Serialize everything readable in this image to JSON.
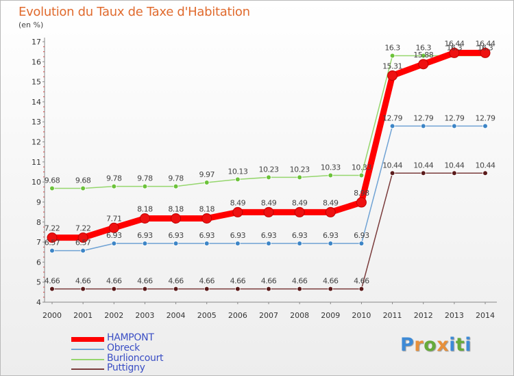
{
  "title": "Evolution du Taux de Taxe d'Habitation",
  "unit_label": "(en %)",
  "logo": {
    "text": "Proxiti",
    "letters": [
      "P",
      "r",
      "o",
      "x",
      "i",
      "t",
      "i"
    ],
    "colors": [
      "#3d8ad6",
      "#e8903a",
      "#66ab3a",
      "#e8903a",
      "#3d8ad6",
      "#66ab3a",
      "#3d8ad6"
    ]
  },
  "chart_data": {
    "type": "line",
    "title": "Evolution du Taux de Taxe d'Habitation",
    "ylabel": "(en %)",
    "xlabel": "",
    "x": [
      "2000",
      "2001",
      "2002",
      "2003",
      "2004",
      "2005",
      "2006",
      "2007",
      "2008",
      "2009",
      "2010",
      "2011",
      "2012",
      "2013",
      "2014"
    ],
    "ylim": [
      4,
      17
    ],
    "yticks": [
      "4",
      "5",
      "6",
      "7",
      "8",
      "9",
      "10",
      "11",
      "12",
      "13",
      "14",
      "15",
      "16",
      "17"
    ],
    "grid": false,
    "legend_placement": "bottom-left",
    "series": [
      {
        "name": "HAMPONT",
        "color": "#ff0000",
        "marker_color": "#ee1111",
        "values": [
          7.22,
          7.22,
          7.71,
          8.18,
          8.18,
          8.18,
          8.49,
          8.49,
          8.49,
          8.49,
          8.98,
          15.31,
          15.88,
          16.44,
          16.44
        ],
        "labels": [
          "7.22",
          "7.22",
          "7.71",
          "8.18",
          "8.18",
          "8.18",
          "8.49",
          "8.49",
          "8.49",
          "8.49",
          "8.98",
          "15.31",
          "15.88",
          "16.44",
          "16.44"
        ],
        "emphasis": true
      },
      {
        "name": "Obreck",
        "color": "#6fa2d4",
        "marker_color": "#3d85c6",
        "values": [
          6.57,
          6.57,
          6.93,
          6.93,
          6.93,
          6.93,
          6.93,
          6.93,
          6.93,
          6.93,
          6.93,
          12.79,
          12.79,
          12.79,
          12.79
        ],
        "labels": [
          "6.57",
          "6.57",
          "6.93",
          "6.93",
          "6.93",
          "6.93",
          "6.93",
          "6.93",
          "6.93",
          "6.93",
          "6.93",
          "12.79",
          "12.79",
          "12.79",
          "12.79"
        ],
        "emphasis": false
      },
      {
        "name": "Burlioncourt",
        "color": "#95d66d",
        "marker_color": "#6cc23a",
        "values": [
          9.68,
          9.68,
          9.78,
          9.78,
          9.78,
          9.97,
          10.13,
          10.23,
          10.23,
          10.33,
          10.33,
          16.3,
          16.3,
          16.3,
          16.3
        ],
        "labels": [
          "9.68",
          "9.68",
          "9.78",
          "9.78",
          "9.78",
          "9.97",
          "10.13",
          "10.23",
          "10.23",
          "10.33",
          "10.33",
          "16.3",
          "16.3",
          "16.3",
          "16.3"
        ],
        "emphasis": false
      },
      {
        "name": "Puttigny",
        "color": "#7a3b3b",
        "marker_color": "#5a1a1a",
        "values": [
          4.66,
          4.66,
          4.66,
          4.66,
          4.66,
          4.66,
          4.66,
          4.66,
          4.66,
          4.66,
          4.66,
          10.44,
          10.44,
          10.44,
          10.44
        ],
        "labels": [
          "4.66",
          "4.66",
          "4.66",
          "4.66",
          "4.66",
          "4.66",
          "4.66",
          "4.66",
          "4.66",
          "4.66",
          "4.66",
          "10.44",
          "10.44",
          "10.44",
          "10.44"
        ],
        "emphasis": false
      }
    ]
  }
}
